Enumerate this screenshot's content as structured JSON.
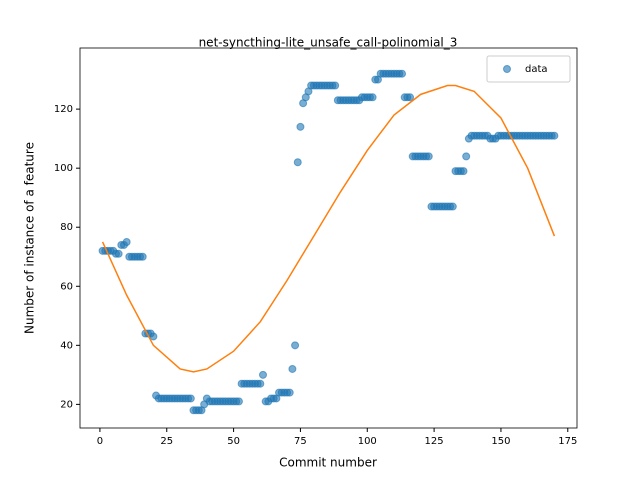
{
  "chart_data": {
    "type": "scatter",
    "title": "net-syncthing-lite_unsafe_call-polinomial_3",
    "x_label": "Commit number",
    "y_label": "Number of instance of a feature",
    "xlim": [
      -7.45,
      178.45
    ],
    "ylim": [
      12,
      140.7
    ],
    "xticks": [
      0,
      25,
      50,
      75,
      100,
      125,
      150,
      175
    ],
    "yticks": [
      20,
      40,
      60,
      80,
      100,
      120
    ],
    "legend": "upper right",
    "series": [
      {
        "name": "data",
        "color": "#1f77b4",
        "kind": "points",
        "x": [
          1,
          2,
          3,
          4,
          5,
          6,
          7,
          8,
          9,
          10,
          11,
          12,
          13,
          14,
          15,
          16,
          17,
          18,
          19,
          20,
          21,
          22,
          23,
          24,
          25,
          26,
          27,
          28,
          29,
          30,
          31,
          32,
          33,
          34,
          35,
          36,
          37,
          38,
          39,
          40,
          41,
          42,
          43,
          44,
          45,
          46,
          47,
          48,
          49,
          50,
          51,
          52,
          53,
          54,
          55,
          56,
          57,
          58,
          59,
          60,
          61,
          62,
          63,
          64,
          65,
          66,
          67,
          68,
          69,
          70,
          71,
          72,
          73,
          74,
          75,
          76,
          77,
          78,
          79,
          80,
          81,
          82,
          83,
          84,
          85,
          86,
          87,
          88,
          89,
          90,
          91,
          92,
          93,
          94,
          95,
          96,
          97,
          98,
          99,
          100,
          101,
          102,
          103,
          104,
          105,
          106,
          107,
          108,
          109,
          110,
          111,
          112,
          113,
          114,
          115,
          116,
          117,
          118,
          119,
          120,
          121,
          122,
          123,
          124,
          125,
          126,
          127,
          128,
          129,
          130,
          131,
          132,
          133,
          134,
          135,
          136,
          137,
          138,
          139,
          140,
          141,
          142,
          143,
          144,
          145,
          146,
          147,
          148,
          149,
          150,
          151,
          152,
          153,
          154,
          155,
          156,
          157,
          158,
          159,
          160,
          161,
          162,
          163,
          164,
          165,
          166,
          167,
          168,
          169,
          170
        ],
        "values": [
          72,
          72,
          72,
          72,
          72,
          71,
          71,
          74,
          74,
          75,
          70,
          70,
          70,
          70,
          70,
          70,
          44,
          44,
          44,
          43,
          23,
          22,
          22,
          22,
          22,
          22,
          22,
          22,
          22,
          22,
          22,
          22,
          22,
          22,
          18,
          18,
          18,
          18,
          20,
          22,
          21,
          21,
          21,
          21,
          21,
          21,
          21,
          21,
          21,
          21,
          21,
          21,
          27,
          27,
          27,
          27,
          27,
          27,
          27,
          27,
          30,
          21,
          21,
          22,
          22,
          22,
          24,
          24,
          24,
          24,
          24,
          32,
          40,
          102,
          114,
          122,
          124,
          126,
          128,
          128,
          128,
          128,
          128,
          128,
          128,
          128,
          128,
          128,
          123,
          123,
          123,
          123,
          123,
          123,
          123,
          123,
          123,
          124,
          124,
          124,
          124,
          124,
          130,
          130,
          132,
          132,
          132,
          132,
          132,
          132,
          132,
          132,
          132,
          124,
          124,
          124,
          104,
          104,
          104,
          104,
          104,
          104,
          104,
          87,
          87,
          87,
          87,
          87,
          87,
          87,
          87,
          87,
          99,
          99,
          99,
          99,
          104,
          110,
          111,
          111,
          111,
          111,
          111,
          111,
          111,
          110,
          110,
          110,
          111,
          111,
          111,
          111,
          111,
          111,
          111,
          111,
          111,
          111,
          111,
          111,
          111,
          111,
          111,
          111,
          111,
          111,
          111,
          111,
          111,
          111
        ]
      },
      {
        "color": "#ff7f0e",
        "kind": "line",
        "x": [
          1,
          10,
          20,
          30,
          35,
          40,
          50,
          60,
          70,
          80,
          90,
          100,
          110,
          120,
          130,
          133,
          140,
          150,
          160,
          170
        ],
        "values": [
          75,
          57,
          40,
          32,
          31,
          32,
          38,
          48,
          62,
          77,
          92,
          106,
          118,
          125,
          128,
          128,
          126,
          117,
          100,
          77
        ]
      }
    ]
  }
}
